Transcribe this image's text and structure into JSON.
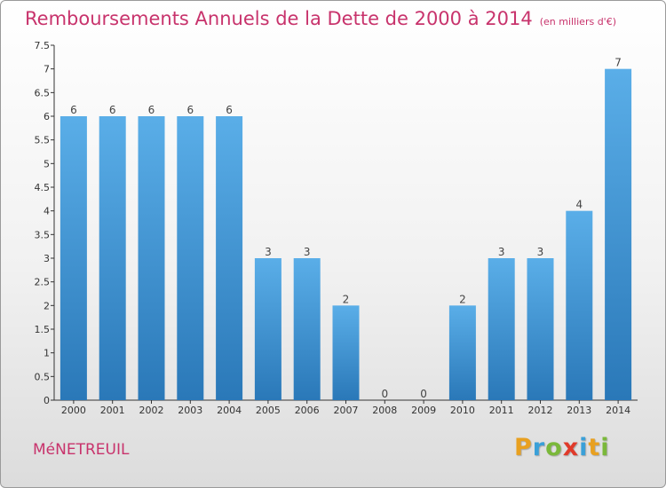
{
  "header": {
    "title": "Remboursements Annuels de la Dette de 2000 à 2014",
    "subtitle": "(en milliers d'€)"
  },
  "footer": {
    "commune": "MéNETREUIL",
    "logo_letters": [
      "P",
      "r",
      "o",
      "x",
      "i",
      "t",
      "i"
    ],
    "logo_colors": [
      "#e8a020",
      "#3aa0d8",
      "#7ab83a",
      "#e03a2a",
      "#3aa0d8",
      "#e8a020",
      "#7ab83a"
    ]
  },
  "chart_data": {
    "type": "bar",
    "categories": [
      "2000",
      "2001",
      "2002",
      "2003",
      "2004",
      "2005",
      "2006",
      "2007",
      "2008",
      "2009",
      "2010",
      "2011",
      "2012",
      "2013",
      "2014"
    ],
    "values": [
      6,
      6,
      6,
      6,
      6,
      3,
      3,
      2,
      0,
      0,
      2,
      3,
      3,
      4,
      7
    ],
    "data_labels": [
      "6",
      "6",
      "6",
      "6",
      "6",
      "3",
      "3",
      "2",
      "0",
      "0",
      "2",
      "3",
      "3",
      "4",
      "7"
    ],
    "ylim": [
      0,
      7.5
    ],
    "y_ticks": [
      "0",
      "0.5",
      "1",
      "1.5",
      "2",
      "2.5",
      "3",
      "3.5",
      "4",
      "4.5",
      "5",
      "5.5",
      "6",
      "6.5",
      "7",
      "7.5"
    ],
    "y_tick_values": [
      0,
      0.5,
      1,
      1.5,
      2,
      2.5,
      3,
      3.5,
      4,
      4.5,
      5,
      5.5,
      6,
      6.5,
      7,
      7.5
    ],
    "grid": false,
    "bar_color_top": "#5aaee8",
    "bar_color_bottom": "#2a78b8"
  }
}
